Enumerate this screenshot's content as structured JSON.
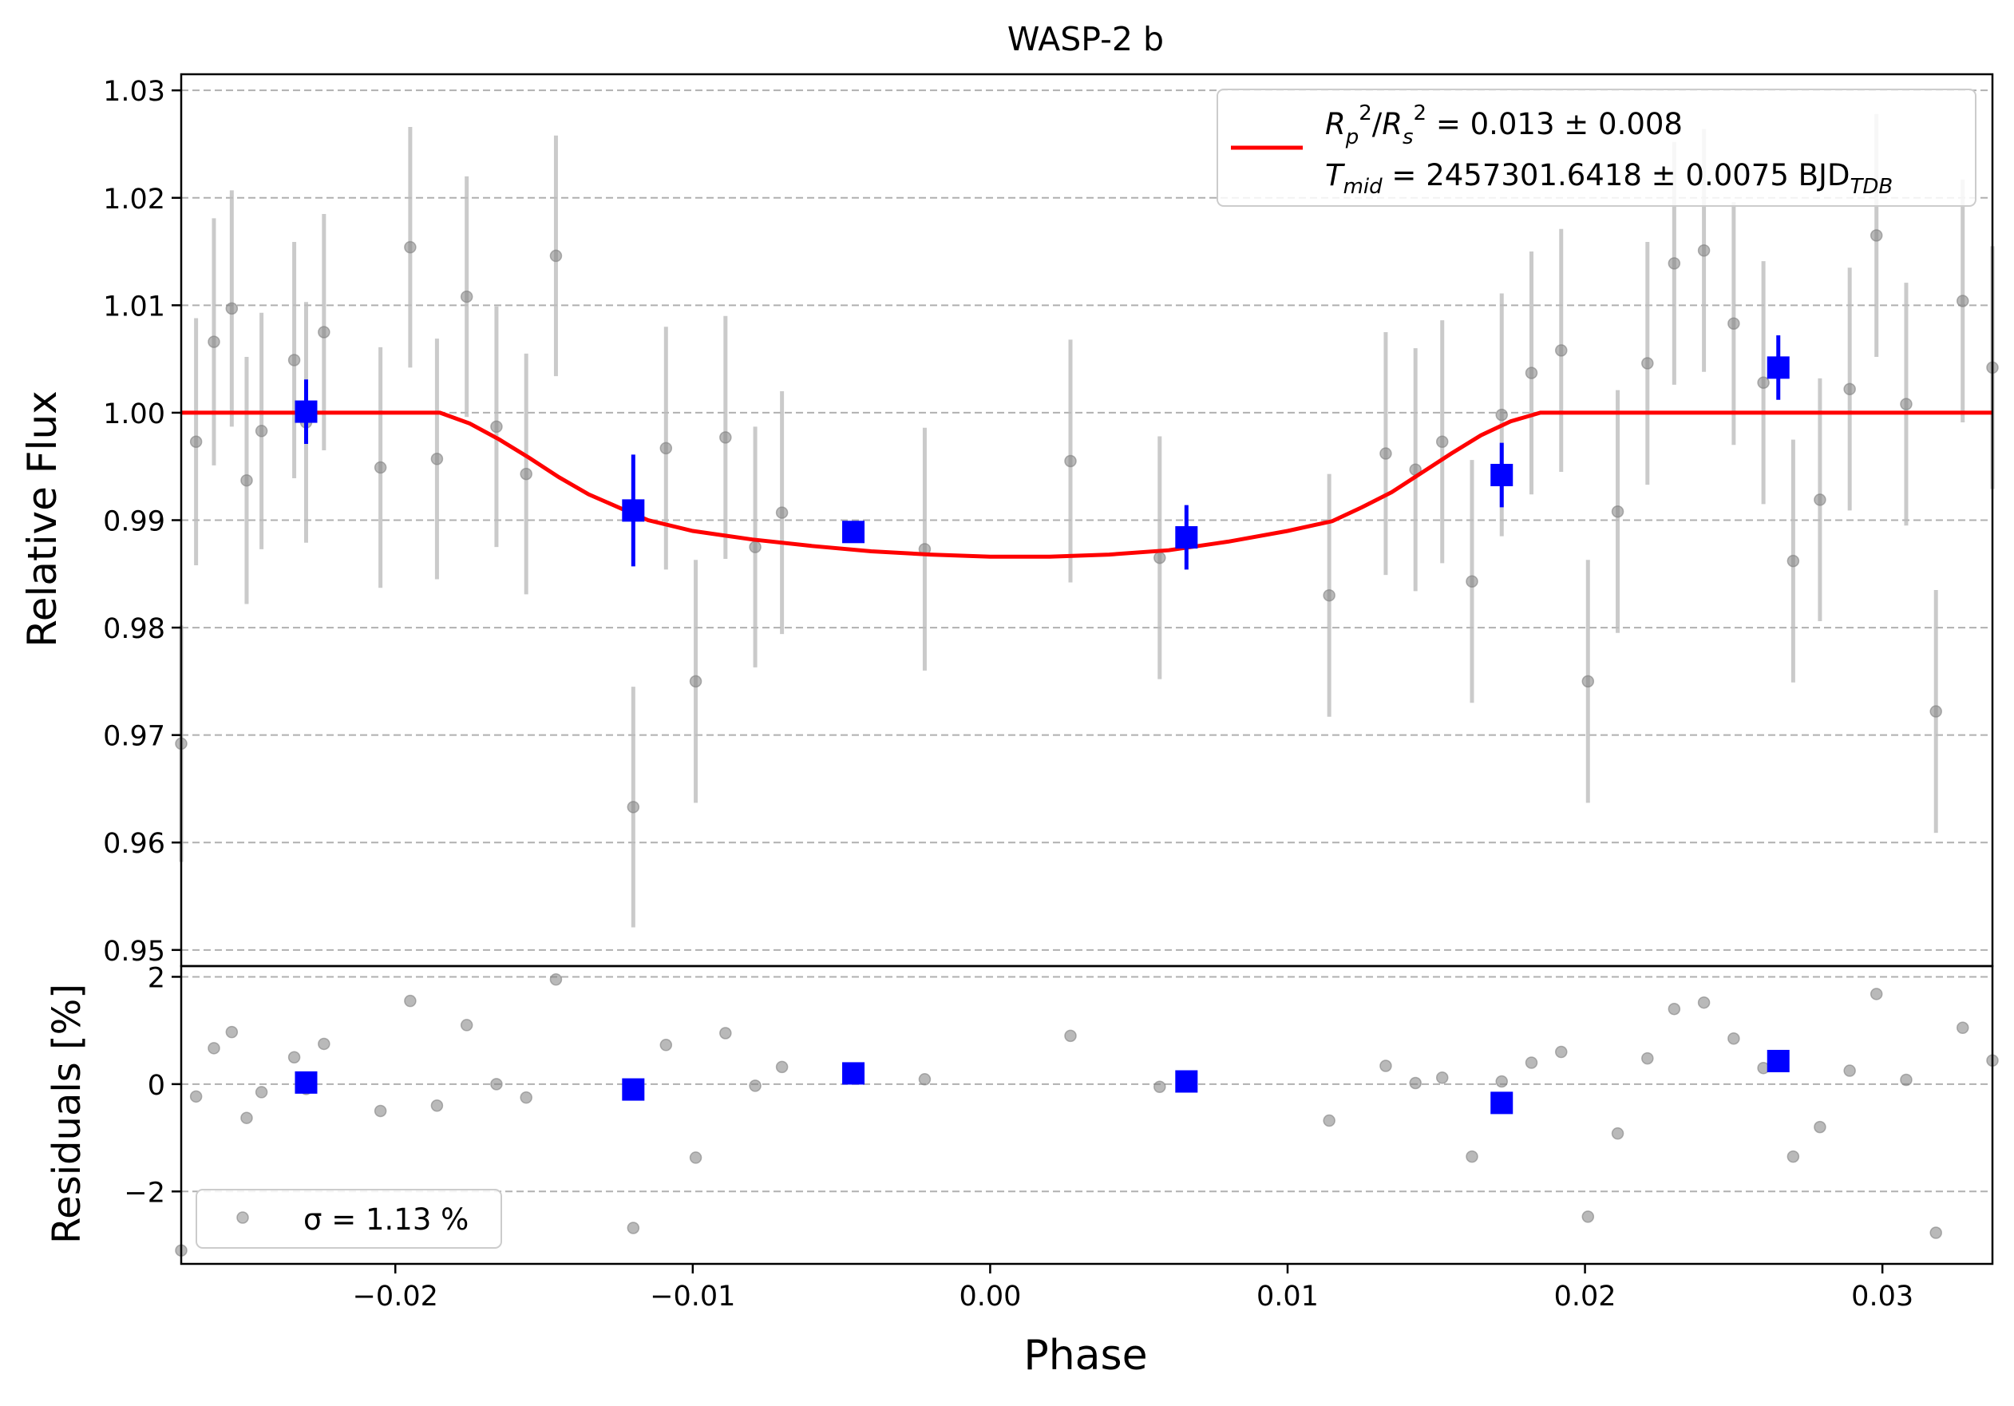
{
  "chart_data": [
    {
      "type": "scatter",
      "title": "WASP-2 b",
      "ylabel": "Relative Flux",
      "xlim": [
        -0.0272,
        0.0337
      ],
      "ylim": [
        0.9485,
        1.0315
      ],
      "yticks": [
        0.95,
        0.96,
        0.97,
        0.98,
        0.99,
        1.0,
        1.01,
        1.02,
        1.03
      ],
      "ytick_labels": [
        "0.95",
        "0.96",
        "0.97",
        "0.98",
        "0.99",
        "1.00",
        "1.01",
        "1.02",
        "1.03"
      ],
      "grid": "y-dashed",
      "legend": {
        "placement": "top-right",
        "line1": "R_p^2/R_s^2 = 0.013 ± 0.008",
        "line2": "T_mid = 2457301.6418 ± 0.0075 BJD_TDB",
        "color": "#ff0000"
      },
      "raw": {
        "color": "#808080",
        "x": [
          -0.0272,
          -0.0267,
          -0.0261,
          -0.0255,
          -0.025,
          -0.0245,
          -0.0234,
          -0.023,
          -0.0224,
          -0.0205,
          -0.0195,
          -0.0186,
          -0.0176,
          -0.0166,
          -0.0156,
          -0.0146,
          -0.012,
          -0.0109,
          -0.0099,
          -0.0089,
          -0.0079,
          -0.007,
          -0.0022,
          0.0027,
          0.0057,
          0.0114,
          0.0133,
          0.0143,
          0.0152,
          0.0162,
          0.0172,
          0.0182,
          0.0192,
          0.0201,
          0.0211,
          0.0221,
          0.023,
          0.024,
          0.025,
          0.026,
          0.027,
          0.0279,
          0.0289,
          0.0298,
          0.0308,
          0.0318,
          0.0327,
          0.0337
        ],
        "y": [
          0.9692,
          0.9973,
          1.0066,
          1.0097,
          0.9937,
          0.9983,
          1.0049,
          0.9991,
          1.0075,
          0.9949,
          1.0154,
          0.9957,
          1.0108,
          0.9987,
          0.9943,
          1.0146,
          0.9633,
          0.9967,
          0.975,
          0.9977,
          0.9875,
          0.9907,
          0.9873,
          0.9955,
          0.9865,
          0.983,
          0.9962,
          0.9947,
          0.9973,
          0.9843,
          0.9998,
          1.0037,
          1.0058,
          0.975,
          0.9908,
          1.0046,
          1.0139,
          1.0151,
          1.0083,
          1.0028,
          0.9862,
          0.9919,
          1.0022,
          1.0165,
          1.0008,
          0.9722,
          1.0104,
          1.0042
        ],
        "err": [
          0.011,
          0.0115,
          0.0115,
          0.011,
          0.0115,
          0.011,
          0.011,
          0.0112,
          0.011,
          0.0112,
          0.0112,
          0.0112,
          0.0112,
          0.0112,
          0.0112,
          0.0112,
          0.0112,
          0.0113,
          0.0113,
          0.0113,
          0.0112,
          0.0113,
          0.0113,
          0.0113,
          0.0113,
          0.0113,
          0.0113,
          0.0113,
          0.0113,
          0.0113,
          0.0113,
          0.0113,
          0.0113,
          0.0113,
          0.0113,
          0.0113,
          0.0113,
          0.0113,
          0.0113,
          0.0113,
          0.0113,
          0.0113,
          0.0113,
          0.0113,
          0.0113,
          0.0113,
          0.0113,
          0.0113
        ]
      },
      "binned": {
        "color": "#0000ff",
        "x": [
          -0.023,
          -0.012,
          -0.0046,
          0.0066,
          0.0172,
          0.0265
        ],
        "y": [
          1.0001,
          0.9909,
          0.9889,
          0.9884,
          0.9942,
          1.0042
        ],
        "err": [
          0.003,
          0.0052,
          0.001,
          0.003,
          0.003,
          0.003
        ]
      },
      "model": {
        "name": "transit model",
        "color": "#ff0000",
        "x": [
          -0.0272,
          -0.0185,
          -0.0175,
          -0.0165,
          -0.0155,
          -0.0145,
          -0.0135,
          -0.0125,
          -0.0115,
          -0.01,
          -0.008,
          -0.006,
          -0.004,
          -0.002,
          0.0,
          0.002,
          0.004,
          0.006,
          0.008,
          0.01,
          0.0115,
          0.0125,
          0.0135,
          0.0145,
          0.0155,
          0.0165,
          0.0175,
          0.0185,
          0.0337
        ],
        "y": [
          1.0,
          1.0,
          0.999,
          0.9975,
          0.9958,
          0.994,
          0.9924,
          0.9912,
          0.99,
          0.989,
          0.9882,
          0.9876,
          0.9871,
          0.9868,
          0.9866,
          0.9866,
          0.9868,
          0.9872,
          0.988,
          0.989,
          0.9899,
          0.9912,
          0.9926,
          0.9944,
          0.9962,
          0.9979,
          0.9992,
          1.0,
          1.0
        ]
      }
    },
    {
      "type": "scatter",
      "xlabel": "Phase",
      "ylabel": "Residuals [%]",
      "xlim": [
        -0.0272,
        0.0337
      ],
      "ylim": [
        -3.35,
        2.2
      ],
      "yticks": [
        -2,
        0,
        2
      ],
      "ytick_labels": [
        "−2",
        "0",
        "2"
      ],
      "xticks": [
        -0.02,
        -0.01,
        0.0,
        0.01,
        0.02,
        0.03
      ],
      "xtick_labels": [
        "−0.02",
        "−0.01",
        "0.00",
        "0.01",
        "0.02",
        "0.03"
      ],
      "grid": "y-dashed",
      "legend": {
        "placement": "bottom-left",
        "label": "σ = 1.13 %"
      },
      "raw": {
        "color": "#808080",
        "x": [
          -0.0272,
          -0.0267,
          -0.0261,
          -0.0255,
          -0.025,
          -0.0245,
          -0.0234,
          -0.023,
          -0.0224,
          -0.0205,
          -0.0195,
          -0.0186,
          -0.0176,
          -0.0166,
          -0.0156,
          -0.0146,
          -0.012,
          -0.0109,
          -0.0099,
          -0.0089,
          -0.0079,
          -0.007,
          -0.0022,
          0.0027,
          0.0057,
          0.0114,
          0.0133,
          0.0143,
          0.0152,
          0.0162,
          0.0172,
          0.0182,
          0.0192,
          0.0201,
          0.0211,
          0.0221,
          0.023,
          0.024,
          0.025,
          0.026,
          0.027,
          0.0279,
          0.0289,
          0.0298,
          0.0308,
          0.0318,
          0.0327,
          0.0337
        ],
        "y": [
          -3.1,
          -0.23,
          0.67,
          0.97,
          -0.63,
          -0.15,
          0.5,
          -0.09,
          0.75,
          -0.5,
          1.55,
          -0.4,
          1.1,
          0.0,
          -0.25,
          1.95,
          -2.68,
          0.73,
          -1.37,
          0.95,
          -0.03,
          0.32,
          0.09,
          0.9,
          -0.05,
          -0.68,
          0.34,
          0.02,
          0.12,
          -1.35,
          0.05,
          0.4,
          0.6,
          -2.47,
          -0.92,
          0.48,
          1.4,
          1.52,
          0.85,
          0.3,
          -1.35,
          -0.8,
          0.25,
          1.68,
          0.08,
          -2.77,
          1.05,
          0.44
        ]
      },
      "binned": {
        "color": "#0000ff",
        "x": [
          -0.023,
          -0.012,
          -0.0046,
          0.0066,
          0.0172,
          0.0265
        ],
        "y": [
          0.03,
          -0.1,
          0.2,
          0.05,
          -0.35,
          0.43
        ]
      },
      "reference_line": 0
    }
  ]
}
